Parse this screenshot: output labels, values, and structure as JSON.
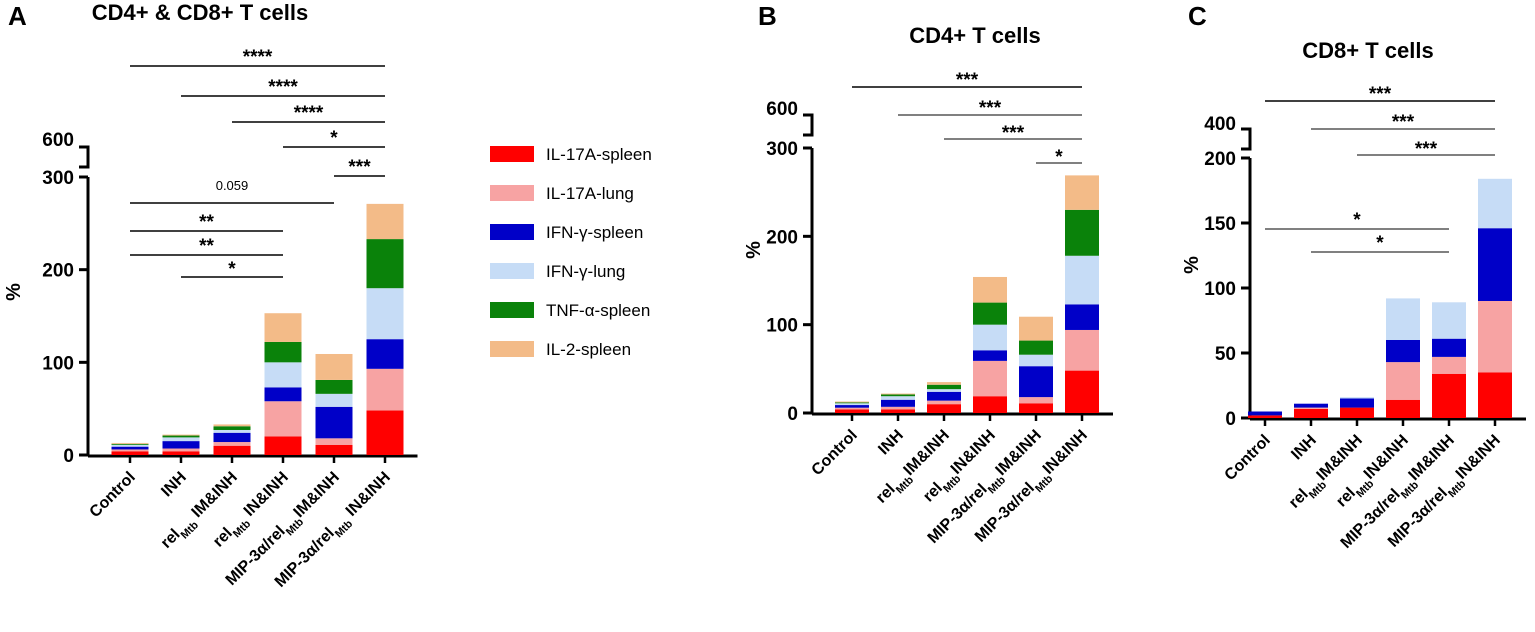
{
  "legend": [
    {
      "name": "IL-17A-spleen",
      "color": "#ff0000"
    },
    {
      "name": "IL-17A-lung",
      "color": "#f7a3a3"
    },
    {
      "name": "IFN-γ-spleen",
      "color": "#0000c8"
    },
    {
      "name": "IFN-γ-lung",
      "color": "#c6dcf6"
    },
    {
      "name": "TNF-α-spleen",
      "color": "#0a820a"
    },
    {
      "name": "IL-2-spleen",
      "color": "#f3bb88"
    }
  ],
  "chart_data": [
    {
      "type": "bar",
      "stacked": true,
      "panel_label": "A",
      "title": "CD4+ & CD8+ T cells",
      "ylabel": "%",
      "ylim": [
        0,
        300
      ],
      "yticks": [
        "0",
        "100",
        "200",
        "300"
      ],
      "axis_break_label": "600",
      "categories": [
        {
          "parts": [
            "Control"
          ]
        },
        {
          "parts": [
            "INH"
          ]
        },
        {
          "parts": [
            "rel",
            "Mtb",
            " IM&INH"
          ]
        },
        {
          "parts": [
            "rel",
            "Mtb",
            " IN&INH"
          ]
        },
        {
          "parts": [
            "MIP-3α/rel",
            "Mtb",
            "IM&INH"
          ]
        },
        {
          "parts": [
            "MIP-3α/rel",
            "Mtb",
            " IN&INH"
          ]
        }
      ],
      "series": [
        {
          "name": "IL-17A-spleen",
          "values": [
            4,
            4,
            10,
            20,
            11,
            48
          ]
        },
        {
          "name": "IL-17A-lung",
          "values": [
            2,
            3,
            4,
            38,
            7,
            45
          ]
        },
        {
          "name": "IFN-γ-spleen",
          "values": [
            3,
            8,
            10,
            15,
            34,
            32
          ]
        },
        {
          "name": "IFN-γ-lung",
          "values": [
            2,
            4,
            3,
            27,
            14,
            55
          ]
        },
        {
          "name": "TNF-α-spleen",
          "values": [
            1,
            2,
            4,
            22,
            15,
            53
          ]
        },
        {
          "name": "IL-2-spleen",
          "values": [
            1,
            1,
            2,
            31,
            28,
            38
          ]
        }
      ],
      "significance": [
        {
          "from": 0,
          "to": 5,
          "label": "****"
        },
        {
          "from": 1,
          "to": 5,
          "label": "****"
        },
        {
          "from": 2,
          "to": 5,
          "label": "****"
        },
        {
          "from": 3,
          "to": 5,
          "label": "*"
        },
        {
          "from": 4,
          "to": 5,
          "label": "***"
        },
        {
          "from": 0,
          "to": 4,
          "label": "0.059"
        },
        {
          "from": 0,
          "to": 3,
          "label": "**"
        },
        {
          "from": 0,
          "to": 3,
          "label": "**"
        },
        {
          "from": 1,
          "to": 3,
          "label": "*"
        }
      ]
    },
    {
      "type": "bar",
      "stacked": true,
      "panel_label": "B",
      "title": "CD4+ T cells",
      "ylabel": "%",
      "ylim": [
        0,
        300
      ],
      "yticks": [
        "0",
        "100",
        "200",
        "300"
      ],
      "axis_break_label": "600",
      "categories": [
        {
          "parts": [
            "Control"
          ]
        },
        {
          "parts": [
            "INH"
          ]
        },
        {
          "parts": [
            "rel",
            "Mtb",
            "IM&INH"
          ]
        },
        {
          "parts": [
            "rel",
            "Mtb",
            "IN&INH"
          ]
        },
        {
          "parts": [
            "MIP-3α/rel",
            "Mtb",
            "IM&INH"
          ]
        },
        {
          "parts": [
            "MIP-3α/rel",
            "Mtb",
            "IN&INH"
          ]
        }
      ],
      "series": [
        {
          "name": "IL-17A-spleen",
          "values": [
            4,
            4,
            10,
            19,
            11,
            48
          ]
        },
        {
          "name": "IL-17A-lung",
          "values": [
            2,
            3,
            4,
            40,
            7,
            46
          ]
        },
        {
          "name": "IFN-γ-spleen",
          "values": [
            3,
            8,
            10,
            12,
            35,
            29
          ]
        },
        {
          "name": "IFN-γ-lung",
          "values": [
            2,
            4,
            3,
            29,
            13,
            55
          ]
        },
        {
          "name": "TNF-α-spleen",
          "values": [
            1,
            2,
            5,
            25,
            16,
            52
          ]
        },
        {
          "name": "IL-2-spleen",
          "values": [
            1,
            1,
            3,
            29,
            27,
            39
          ]
        }
      ],
      "significance": [
        {
          "from": 0,
          "to": 5,
          "label": "***"
        },
        {
          "from": 1,
          "to": 5,
          "label": "***"
        },
        {
          "from": 2,
          "to": 5,
          "label": "***"
        },
        {
          "from": 4,
          "to": 5,
          "label": "*"
        }
      ]
    },
    {
      "type": "bar",
      "stacked": true,
      "panel_label": "C",
      "title": "CD8+ T cells",
      "ylabel": "%",
      "ylim": [
        0,
        200
      ],
      "yticks": [
        "0",
        "50",
        "100",
        "150",
        "200"
      ],
      "axis_break_label": "400",
      "categories": [
        {
          "parts": [
            "Control"
          ]
        },
        {
          "parts": [
            "INH"
          ]
        },
        {
          "parts": [
            "rel",
            "Mtb",
            "IM&INH"
          ]
        },
        {
          "parts": [
            "rel",
            "Mtb",
            "IN&INH"
          ]
        },
        {
          "parts": [
            "MIP-3α/rel",
            "Mtb",
            "IM&INH"
          ]
        },
        {
          "parts": [
            "MIP-3α/rel",
            "Mtb",
            "IN&INH"
          ]
        }
      ],
      "series": [
        {
          "name": "IL-17A-spleen",
          "values": [
            2,
            7,
            8,
            14,
            34,
            35
          ]
        },
        {
          "name": "IL-17A-lung",
          "values": [
            0,
            1,
            0,
            29,
            13,
            55
          ]
        },
        {
          "name": "IFN-γ-spleen",
          "values": [
            3,
            3,
            7,
            17,
            14,
            56
          ]
        },
        {
          "name": "IFN-γ-lung",
          "values": [
            0,
            0,
            1,
            32,
            28,
            38
          ]
        },
        {
          "name": "TNF-α-spleen",
          "values": [
            0,
            0,
            0,
            0,
            0,
            0
          ]
        },
        {
          "name": "IL-2-spleen",
          "values": [
            0,
            0,
            0,
            0,
            0,
            0
          ]
        }
      ],
      "significance": [
        {
          "from": 0,
          "to": 5,
          "label": "***"
        },
        {
          "from": 1,
          "to": 5,
          "label": "***"
        },
        {
          "from": 2,
          "to": 5,
          "label": "***"
        },
        {
          "from": 0,
          "to": 4,
          "label": "*"
        },
        {
          "from": 1,
          "to": 4,
          "label": "*"
        }
      ]
    }
  ]
}
